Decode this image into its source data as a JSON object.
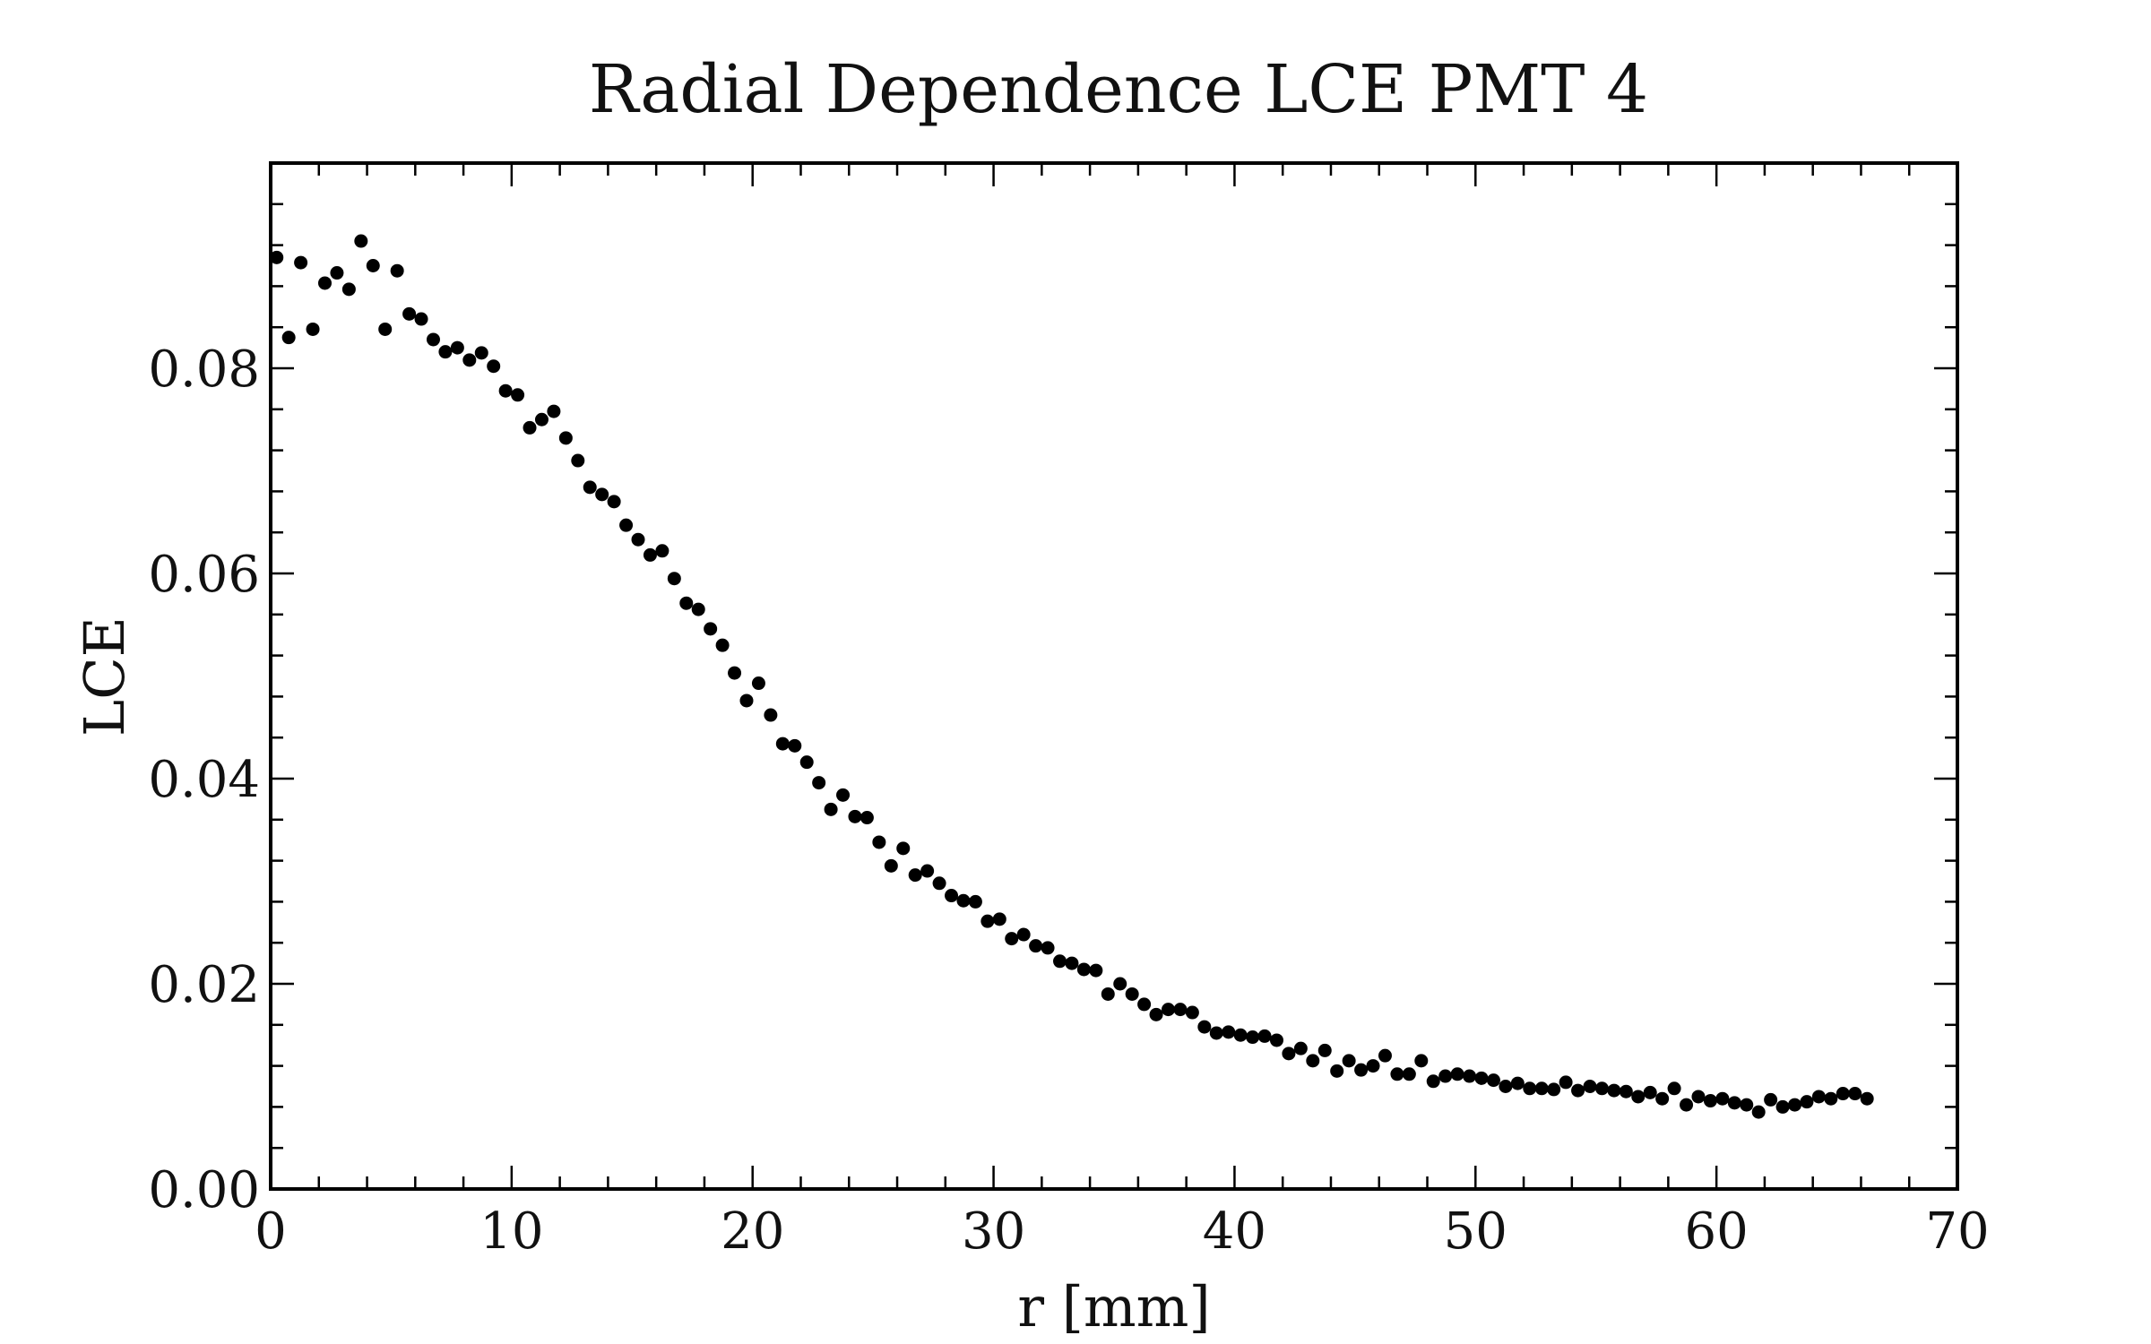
{
  "chart_data": {
    "type": "scatter",
    "title": "Radial Dependence LCE PMT 4",
    "xlabel": "r [mm]",
    "ylabel": "LCE",
    "xlim": [
      0,
      70
    ],
    "ylim": [
      0,
      0.1
    ],
    "x_ticks": [
      0,
      10,
      20,
      30,
      40,
      50,
      60,
      70
    ],
    "x_tick_labels": [
      "0",
      "10",
      "20",
      "30",
      "40",
      "50",
      "60",
      "70"
    ],
    "y_ticks": [
      0.0,
      0.02,
      0.04,
      0.06,
      0.08
    ],
    "y_tick_labels": [
      "0.00",
      "0.02",
      "0.04",
      "0.06",
      "0.08"
    ],
    "grid": false,
    "marker_color": "#000000",
    "series": [
      {
        "x": [
          0.25,
          0.75,
          1.25,
          1.75,
          2.25,
          2.75,
          3.25,
          3.75,
          4.25,
          4.75,
          5.25,
          5.75,
          6.25,
          6.75,
          7.25,
          7.75,
          8.25,
          8.75,
          9.25,
          9.75,
          10.25,
          10.75,
          11.25,
          11.75,
          12.25,
          12.75,
          13.25,
          13.75,
          14.25,
          14.75,
          15.25,
          15.75,
          16.25,
          16.75,
          17.25,
          17.75,
          18.25,
          18.75,
          19.25,
          19.75,
          20.25,
          20.75,
          21.25,
          21.75,
          22.25,
          22.75,
          23.25,
          23.75,
          24.25,
          24.75,
          25.25,
          25.75,
          26.25,
          26.75,
          27.25,
          27.75,
          28.25,
          28.75,
          29.25,
          29.75,
          30.25,
          30.75,
          31.25,
          31.75,
          32.25,
          32.75,
          33.25,
          33.75,
          34.25,
          34.75,
          35.25,
          35.75,
          36.25,
          36.75,
          37.25,
          37.75,
          38.25,
          38.75,
          39.25,
          39.75,
          40.25,
          40.75,
          41.25,
          41.75,
          42.25,
          42.75,
          43.25,
          43.75,
          44.25,
          44.75,
          45.25,
          45.75,
          46.25,
          46.75,
          47.25,
          47.75,
          48.25,
          48.75,
          49.25,
          49.75,
          50.25,
          50.75,
          51.25,
          51.75,
          52.25,
          52.75,
          53.25,
          53.75,
          54.25,
          54.75,
          55.25,
          55.75,
          56.25,
          56.75,
          57.25,
          57.75,
          58.25,
          58.75,
          59.25,
          59.75,
          60.25,
          60.75,
          61.25,
          61.75,
          62.25,
          62.75,
          63.25,
          63.75,
          64.25,
          64.75,
          65.25,
          65.75,
          66.25
        ],
        "y": [
          0.0908,
          0.083,
          0.0903,
          0.0838,
          0.0883,
          0.0893,
          0.0877,
          0.0924,
          0.09,
          0.0838,
          0.0895,
          0.0853,
          0.0848,
          0.0828,
          0.0816,
          0.082,
          0.0808,
          0.0815,
          0.0802,
          0.0778,
          0.0774,
          0.0742,
          0.075,
          0.0758,
          0.0732,
          0.071,
          0.0684,
          0.0677,
          0.067,
          0.0647,
          0.0633,
          0.0618,
          0.0622,
          0.0595,
          0.0571,
          0.0565,
          0.0546,
          0.053,
          0.0503,
          0.0476,
          0.0493,
          0.0462,
          0.0434,
          0.0432,
          0.0416,
          0.0396,
          0.037,
          0.0384,
          0.0363,
          0.0362,
          0.0338,
          0.0315,
          0.0332,
          0.0306,
          0.031,
          0.0298,
          0.0286,
          0.0281,
          0.028,
          0.0261,
          0.0263,
          0.0244,
          0.0248,
          0.0237,
          0.0235,
          0.0222,
          0.022,
          0.0214,
          0.0213,
          0.019,
          0.02,
          0.019,
          0.018,
          0.017,
          0.0175,
          0.0175,
          0.0172,
          0.0158,
          0.0152,
          0.0153,
          0.015,
          0.0148,
          0.0149,
          0.0145,
          0.0132,
          0.0137,
          0.0125,
          0.0135,
          0.0115,
          0.0125,
          0.0116,
          0.012,
          0.013,
          0.0112,
          0.0112,
          0.0125,
          0.0105,
          0.011,
          0.0112,
          0.011,
          0.0108,
          0.0106,
          0.01,
          0.0103,
          0.0098,
          0.0098,
          0.0097,
          0.0104,
          0.0096,
          0.01,
          0.0098,
          0.0096,
          0.0095,
          0.009,
          0.0094,
          0.0088,
          0.0098,
          0.0082,
          0.009,
          0.0086,
          0.0088,
          0.0084,
          0.0082,
          0.0075,
          0.0087,
          0.008,
          0.0082,
          0.0085,
          0.009,
          0.0088,
          0.0093,
          0.0093,
          0.0088
        ]
      }
    ]
  }
}
